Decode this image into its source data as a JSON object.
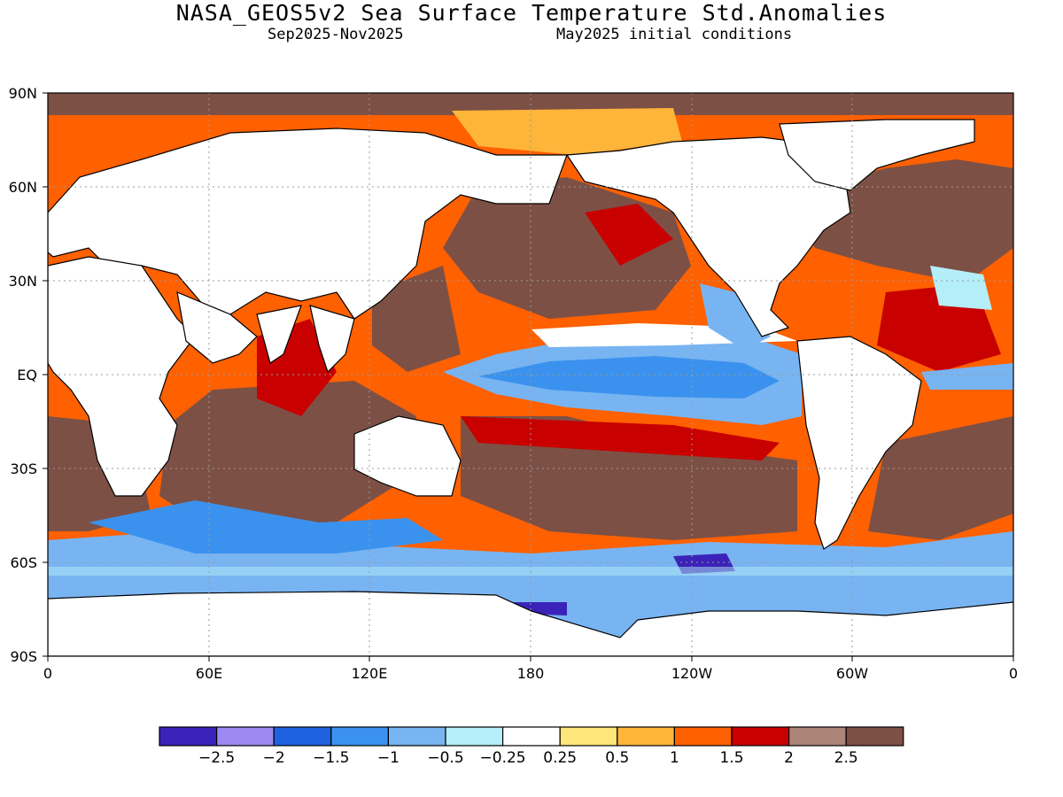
{
  "title": "NASA_GEOS5v2 Sea Surface Temperature Std.Anomalies",
  "subtitle_left": "Sep2025-Nov2025",
  "subtitle_right": "May2025 initial conditions",
  "lat_labels": [
    "90N",
    "60N",
    "30N",
    "EQ",
    "30S",
    "60S",
    "90S"
  ],
  "lon_labels": [
    "0",
    "60E",
    "120E",
    "180",
    "120W",
    "60W",
    "0"
  ],
  "colorbar": {
    "colors": [
      "#3b22b8",
      "#9e88f2",
      "#1f62e0",
      "#3a92ee",
      "#78b4f2",
      "#b4eef8",
      "#ffffff",
      "#ffe57a",
      "#ffb43a",
      "#ff6000",
      "#c80000",
      "#ad8478",
      "#7d5045"
    ],
    "labels": [
      "−2.5",
      "−2",
      "−1.5",
      "−1",
      "−0.5",
      "−0.25",
      "0.25",
      "0.5",
      "1",
      "1.5",
      "2",
      "2.5"
    ]
  },
  "colors": {
    "land": "#ffffff",
    "coast": "#000000",
    "grid": "#9a9a9a"
  }
}
